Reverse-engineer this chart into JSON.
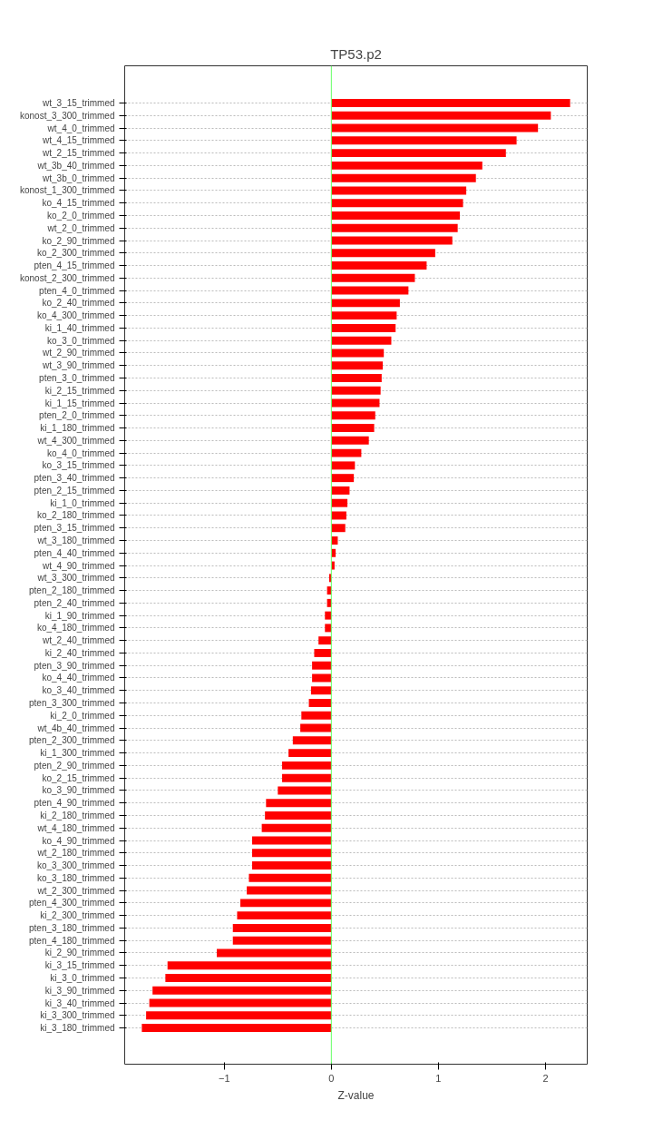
{
  "chart_data": {
    "type": "bar",
    "orientation": "horizontal",
    "title": "TP53.p2",
    "xlabel": "Z-value",
    "categories": [
      "wt_3_15_trimmed",
      "konost_3_300_trimmed",
      "wt_4_0_trimmed",
      "wt_4_15_trimmed",
      "wt_2_15_trimmed",
      "wt_3b_40_trimmed",
      "wt_3b_0_trimmed",
      "konost_1_300_trimmed",
      "ko_4_15_trimmed",
      "ko_2_0_trimmed",
      "wt_2_0_trimmed",
      "ko_2_90_trimmed",
      "ko_2_300_trimmed",
      "pten_4_15_trimmed",
      "konost_2_300_trimmed",
      "pten_4_0_trimmed",
      "ko_2_40_trimmed",
      "ko_4_300_trimmed",
      "ki_1_40_trimmed",
      "ko_3_0_trimmed",
      "wt_2_90_trimmed",
      "wt_3_90_trimmed",
      "pten_3_0_trimmed",
      "ki_2_15_trimmed",
      "ki_1_15_trimmed",
      "pten_2_0_trimmed",
      "ki_1_180_trimmed",
      "wt_4_300_trimmed",
      "ko_4_0_trimmed",
      "ko_3_15_trimmed",
      "pten_3_40_trimmed",
      "pten_2_15_trimmed",
      "ki_1_0_trimmed",
      "ko_2_180_trimmed",
      "pten_3_15_trimmed",
      "wt_3_180_trimmed",
      "pten_4_40_trimmed",
      "wt_4_90_trimmed",
      "wt_3_300_trimmed",
      "pten_2_180_trimmed",
      "pten_2_40_trimmed",
      "ki_1_90_trimmed",
      "ko_4_180_trimmed",
      "wt_2_40_trimmed",
      "ki_2_40_trimmed",
      "pten_3_90_trimmed",
      "ko_4_40_trimmed",
      "ko_3_40_trimmed",
      "pten_3_300_trimmed",
      "ki_2_0_trimmed",
      "wt_4b_40_trimmed",
      "pten_2_300_trimmed",
      "ki_1_300_trimmed",
      "pten_2_90_trimmed",
      "ko_2_15_trimmed",
      "ko_3_90_trimmed",
      "pten_4_90_trimmed",
      "ki_2_180_trimmed",
      "wt_4_180_trimmed",
      "ko_4_90_trimmed",
      "wt_2_180_trimmed",
      "ko_3_300_trimmed",
      "ko_3_180_trimmed",
      "wt_2_300_trimmed",
      "pten_4_300_trimmed",
      "ki_2_300_trimmed",
      "pten_3_180_trimmed",
      "pten_4_180_trimmed",
      "ki_2_90_trimmed",
      "ki_3_15_trimmed",
      "ki_3_0_trimmed",
      "ki_3_90_trimmed",
      "ki_3_40_trimmed",
      "ki_3_300_trimmed",
      "ki_3_180_trimmed"
    ],
    "values": [
      2.23,
      2.05,
      1.93,
      1.73,
      1.63,
      1.41,
      1.35,
      1.26,
      1.23,
      1.2,
      1.18,
      1.13,
      0.97,
      0.89,
      0.78,
      0.72,
      0.64,
      0.61,
      0.6,
      0.56,
      0.49,
      0.48,
      0.47,
      0.46,
      0.45,
      0.41,
      0.4,
      0.35,
      0.28,
      0.22,
      0.21,
      0.17,
      0.15,
      0.14,
      0.13,
      0.06,
      0.04,
      0.03,
      -0.02,
      -0.04,
      -0.04,
      -0.06,
      -0.06,
      -0.12,
      -0.16,
      -0.18,
      -0.18,
      -0.19,
      -0.21,
      -0.28,
      -0.29,
      -0.36,
      -0.4,
      -0.46,
      -0.46,
      -0.5,
      -0.61,
      -0.62,
      -0.65,
      -0.74,
      -0.74,
      -0.74,
      -0.77,
      -0.79,
      -0.85,
      -0.88,
      -0.92,
      -0.92,
      -1.07,
      -1.53,
      -1.55,
      -1.67,
      -1.7,
      -1.73,
      -1.77
    ],
    "color": "#ff0000",
    "xlim": [
      -1.93,
      2.39
    ],
    "xticks": [
      -1,
      0,
      1,
      2
    ],
    "grid": "y",
    "ref_lines": [
      {
        "axis": "x",
        "value": 0,
        "color": "#66ff66"
      }
    ]
  }
}
